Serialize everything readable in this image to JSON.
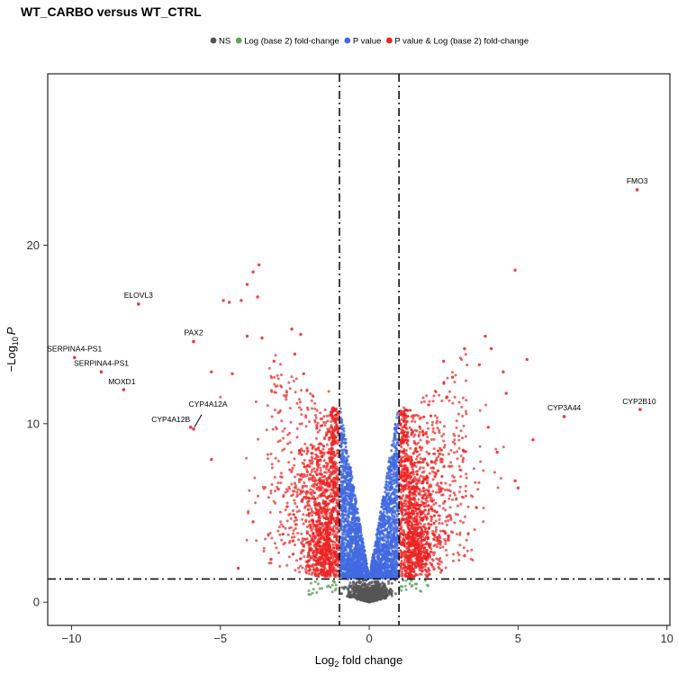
{
  "chart_data": {
    "type": "scatter",
    "title": "WT_CARBO versus WT_CTRL",
    "xlabel_main": "Log",
    "xlabel_sub": "2",
    "xlabel_rest": " fold change",
    "ylabel_prefix": "−Log",
    "ylabel_sub": "10",
    "ylabel_var": "P",
    "xlim": [
      -10.8,
      10.1
    ],
    "ylim": [
      -1.3,
      29.6
    ],
    "x_ticks": [
      -10,
      -5,
      0,
      5,
      10
    ],
    "x_tick_labels": [
      "−10",
      "−5",
      "0",
      "5",
      "10"
    ],
    "y_ticks": [
      0,
      10,
      20
    ],
    "y_tick_labels": [
      "0",
      "10",
      "20"
    ],
    "fc_cutoff": 1,
    "p_cutoff_log": 1.3,
    "legend": {
      "position": "top",
      "entries": [
        {
          "label": "NS",
          "color": "#555555"
        },
        {
          "label": "Log (base 2) fold-change",
          "color": "#5aa55a"
        },
        {
          "label": "P value",
          "color": "#4169e1"
        },
        {
          "label": "P value & Log (base 2) fold-change",
          "color": "#ee2222"
        }
      ]
    },
    "colors": {
      "ns": "#555555",
      "fc": "#5aa55a",
      "p": "#4169e1",
      "both": "#ee2222"
    },
    "labeled_points": [
      {
        "name": "FMO3",
        "x": 9.0,
        "y": 23.1
      },
      {
        "name": "ELOVL3",
        "x": -7.75,
        "y": 16.7
      },
      {
        "name": "PAX2",
        "x": -5.9,
        "y": 14.6
      },
      {
        "name": "SERPINA4-PS1",
        "x": -9.9,
        "y": 13.7
      },
      {
        "name": "SERPINA4-PS1",
        "x": -9.0,
        "y": 12.9
      },
      {
        "name": "MOXD1",
        "x": -8.25,
        "y": 11.9
      },
      {
        "name": "CYP4A12A",
        "x": -5.9,
        "y": 9.7
      },
      {
        "name": "CYP4A12B",
        "x": -6.0,
        "y": 9.8
      },
      {
        "name": "CYP3A44",
        "x": 6.55,
        "y": 10.4
      },
      {
        "name": "CYP2B10",
        "x": 9.1,
        "y": 10.8
      }
    ],
    "outlier_points": [
      [
        -3.7,
        18.9
      ],
      [
        -3.9,
        18.5
      ],
      [
        -4.1,
        17.8
      ],
      [
        -4.3,
        16.9
      ],
      [
        -4.7,
        16.8
      ],
      [
        -4.9,
        16.9
      ],
      [
        -3.75,
        17.1
      ],
      [
        -2.3,
        15.0
      ],
      [
        -2.6,
        15.3
      ],
      [
        -3.6,
        14.8
      ],
      [
        -4.1,
        14.9
      ],
      [
        -5.3,
        12.9
      ],
      [
        -4.6,
        12.8
      ],
      [
        -2.5,
        13.9
      ],
      [
        -2.2,
        12.8
      ],
      [
        -3.2,
        13.5
      ],
      [
        -5.3,
        8.0
      ],
      [
        -3.9,
        4.5
      ],
      [
        -2.1,
        2.0
      ],
      [
        -1.8,
        1.5
      ],
      [
        -4.4,
        1.9
      ],
      [
        -3.3,
        2.4
      ],
      [
        4.9,
        18.6
      ],
      [
        3.9,
        14.9
      ],
      [
        3.2,
        14.2
      ],
      [
        4.1,
        14.2
      ],
      [
        5.3,
        13.6
      ],
      [
        3.7,
        13.3
      ],
      [
        4.6,
        11.7
      ],
      [
        4.5,
        12.9
      ],
      [
        2.5,
        13.5
      ],
      [
        2.8,
        12.6
      ],
      [
        5.0,
        6.4
      ],
      [
        4.9,
        6.8
      ],
      [
        5.5,
        9.1
      ],
      [
        4.0,
        9.8
      ],
      [
        4.3,
        8.4
      ],
      [
        3.6,
        5.3
      ],
      [
        3.2,
        2.6
      ],
      [
        2.1,
        2.1
      ]
    ]
  }
}
